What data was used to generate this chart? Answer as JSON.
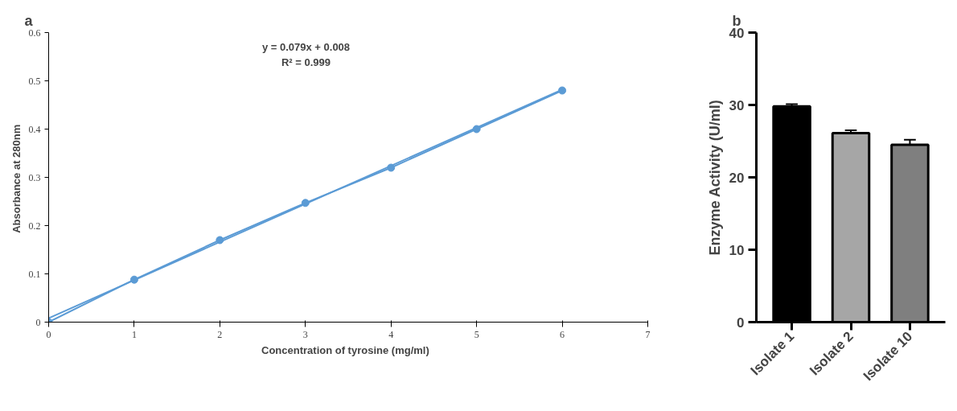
{
  "chart_data": [
    {
      "type": "line",
      "title": "a",
      "xlabel": "Concentration  of tyrosine  (mg/ml)",
      "ylabel": "Absorbance  at 280nm",
      "xlim": [
        0,
        7
      ],
      "ylim": [
        0,
        0.6
      ],
      "xticks": [
        0,
        1,
        2,
        3,
        4,
        5,
        6,
        7
      ],
      "yticks": [
        0,
        0.1,
        0.2,
        0.3,
        0.4,
        0.5,
        0.6
      ],
      "grid": false,
      "annotations": [
        "y = 0.079x + 0.008",
        "R² = 0.999"
      ],
      "series": [
        {
          "type": "line",
          "color": "#5b9bd5",
          "marker": "circle",
          "x": [
            0,
            1,
            2,
            3,
            4,
            5,
            6
          ],
          "values": [
            0,
            0.088,
            0.17,
            0.247,
            0.32,
            0.4,
            0.48
          ]
        },
        {
          "type": "line",
          "color": "#5b9bd5",
          "marker": "none",
          "x": [
            0,
            6
          ],
          "values": [
            0.008,
            0.482
          ]
        }
      ]
    },
    {
      "type": "bar",
      "title": "b",
      "ylabel": "Enzyme Activity (U/ml)",
      "categories": [
        "Isolate 1",
        "Isolate 2",
        "Isolate 10"
      ],
      "values": [
        29.8,
        26.1,
        24.5
      ],
      "errors": [
        0.3,
        0.4,
        0.7
      ],
      "colors": [
        "#000000",
        "#a6a6a6",
        "#7f7f7f"
      ],
      "ylim": [
        0,
        40
      ],
      "yticks": [
        0,
        10,
        20,
        30,
        40
      ],
      "grid": false
    }
  ]
}
